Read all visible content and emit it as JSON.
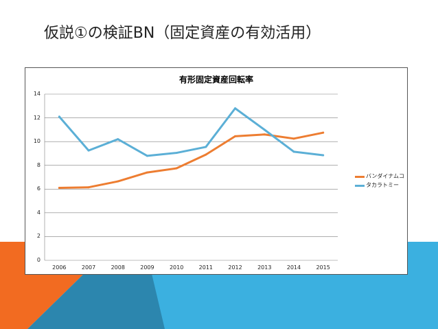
{
  "slide": {
    "title": "仮説①の検証BN（固定資産の有効活用）"
  },
  "colors": {
    "accent_orange": "#F26B21",
    "accent_blue": "#3BB0E0",
    "accent_dark_blue": "#2C86AE",
    "series_orange": "#ED7D31",
    "series_blue": "#5BAFD6",
    "grid": "#7f7f7f"
  },
  "chart_data": {
    "type": "line",
    "title": "有形固定資産回転率",
    "xlabel": "",
    "ylabel": "",
    "categories": [
      "2006",
      "2007",
      "2008",
      "2009",
      "2010",
      "2011",
      "2012",
      "2013",
      "2014",
      "2015"
    ],
    "ylim": [
      0,
      14
    ],
    "yticks": [
      0,
      2,
      4,
      6,
      8,
      10,
      12,
      14
    ],
    "grid": true,
    "legend_position": "right",
    "series": [
      {
        "name": "バンダイナムコ",
        "color": "#ED7D31",
        "values": [
          6.1,
          6.15,
          6.65,
          7.4,
          7.75,
          8.9,
          10.45,
          10.6,
          10.25,
          10.75
        ]
      },
      {
        "name": "タカラトミー",
        "color": "#5BAFD6",
        "values": [
          12.1,
          9.25,
          10.2,
          8.8,
          9.05,
          9.55,
          12.8,
          11.0,
          9.15,
          8.85
        ]
      }
    ]
  }
}
